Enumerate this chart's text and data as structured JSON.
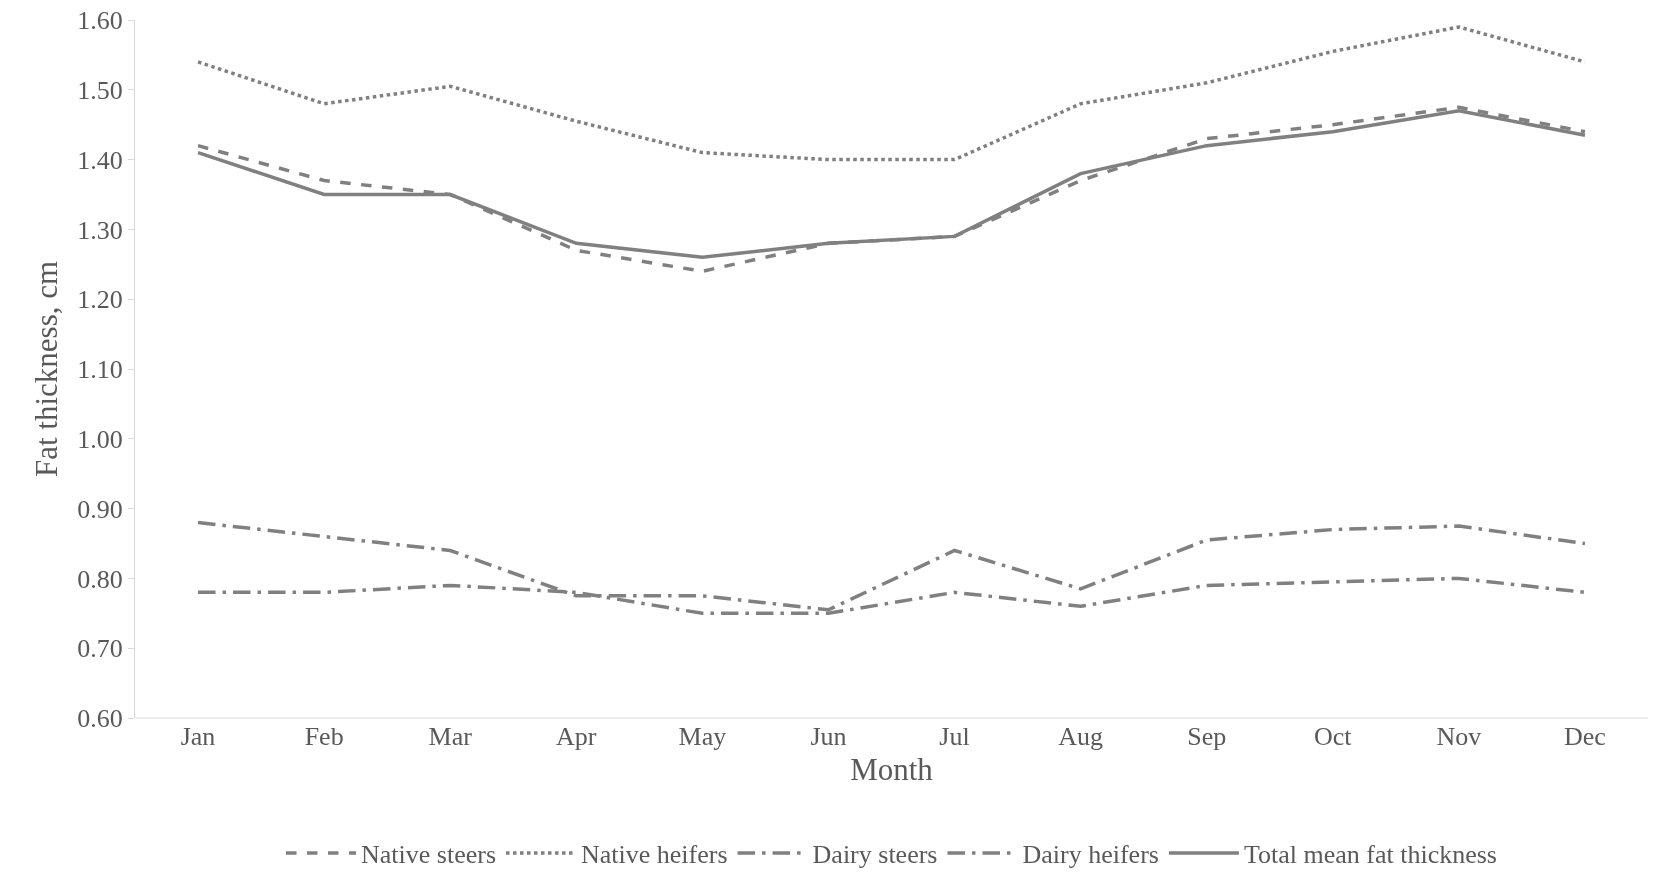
{
  "chart_data": {
    "type": "line",
    "xlabel": "Month",
    "ylabel": "Fat thickness, cm",
    "categories": [
      "Jan",
      "Feb",
      "Mar",
      "Apr",
      "May",
      "Jun",
      "Jul",
      "Aug",
      "Sep",
      "Oct",
      "Nov",
      "Dec"
    ],
    "series": [
      {
        "name": "Native steers",
        "color": "#808080",
        "line_style": "dashed",
        "values": [
          1.42,
          1.37,
          1.35,
          1.27,
          1.24,
          1.28,
          1.29,
          1.37,
          1.43,
          1.45,
          1.475,
          1.44
        ]
      },
      {
        "name": "Native heifers",
        "color": "#808080",
        "line_style": "dotted",
        "values": [
          1.54,
          1.48,
          1.505,
          1.455,
          1.41,
          1.4,
          1.4,
          1.48,
          1.51,
          1.555,
          1.59,
          1.54
        ]
      },
      {
        "name": "Dairy steers",
        "color": "#808080",
        "line_style": "dashdot",
        "values": [
          0.78,
          0.78,
          0.79,
          0.78,
          0.75,
          0.75,
          0.78,
          0.76,
          0.79,
          0.795,
          0.8,
          0.78
        ]
      },
      {
        "name": "Dairy heifers",
        "color": "#808080",
        "line_style": "dashdot",
        "values": [
          0.88,
          0.86,
          0.84,
          0.775,
          0.775,
          0.755,
          0.84,
          0.785,
          0.855,
          0.87,
          0.875,
          0.85
        ]
      },
      {
        "name": "Total mean fat thickness",
        "color": "#808080",
        "line_style": "solid",
        "values": [
          1.41,
          1.35,
          1.35,
          1.28,
          1.26,
          1.28,
          1.29,
          1.38,
          1.42,
          1.44,
          1.47,
          1.435
        ]
      }
    ],
    "ylim": [
      0.6,
      1.6
    ],
    "yticks": [
      {
        "value": 0.6,
        "label": "0.60"
      },
      {
        "value": 0.7,
        "label": "0.70"
      },
      {
        "value": 0.8,
        "label": "0.80"
      },
      {
        "value": 0.9,
        "label": "0.90"
      },
      {
        "value": 1.0,
        "label": "1.00"
      },
      {
        "value": 1.1,
        "label": "1.10"
      },
      {
        "value": 1.2,
        "label": "1.20"
      },
      {
        "value": 1.3,
        "label": "1.30"
      },
      {
        "value": 1.4,
        "label": "1.40"
      },
      {
        "value": 1.5,
        "label": "1.50"
      },
      {
        "value": 1.6,
        "label": "1.60"
      }
    ],
    "grid": false,
    "legend": "bottom",
    "marker": "none"
  }
}
